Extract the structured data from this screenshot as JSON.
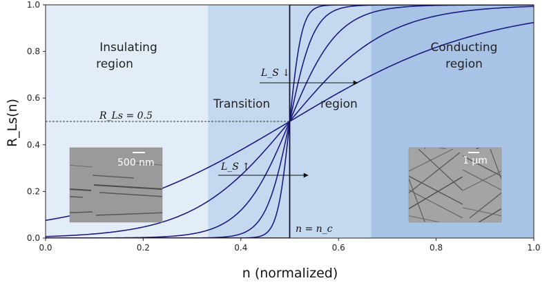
{
  "chart_data": {
    "type": "line",
    "xlabel": "n (normalized)",
    "ylabel": "R_Ls(n)",
    "xlim": [
      0.0,
      1.0
    ],
    "ylim": [
      0.0,
      1.0
    ],
    "xticks": [
      "0.0",
      "0.2",
      "0.4",
      "0.6",
      "0.8",
      "1.0"
    ],
    "yticks": [
      "0.0",
      "0.2",
      "0.4",
      "0.6",
      "0.8",
      "1.0"
    ],
    "grid": false,
    "critical_point": 0.5,
    "colors": {
      "insulating": "#e3edf8",
      "transition": "#c4d8f0",
      "conducting": "#a9c3e6",
      "curve": "#1a1a80",
      "step": "#111133"
    },
    "regions": [
      {
        "name": "insulating",
        "x_start": 0.0,
        "x_end": 0.333
      },
      {
        "name": "transition",
        "x_start": 0.333,
        "x_end": 0.667
      },
      {
        "name": "conducting",
        "x_start": 0.667,
        "x_end": 1.0
      }
    ],
    "curve_steepness": [
      5,
      10,
      20,
      40,
      80
    ],
    "step_curve": true,
    "threshold": {
      "y": 0.5,
      "label": "R_Ls = 0.5"
    },
    "annotations": {
      "insulating_line1": "Insulating",
      "insulating_line2": "region",
      "transition_word1": "Transition",
      "transition_word2": "region",
      "conducting_line1": "Conducting",
      "conducting_line2": "region",
      "ls_down": "L_S ↓",
      "ls_up": "L_S ↑",
      "critical_label": "n = n_c",
      "left_scale": "500 nm",
      "right_scale": "1 μm"
    }
  }
}
